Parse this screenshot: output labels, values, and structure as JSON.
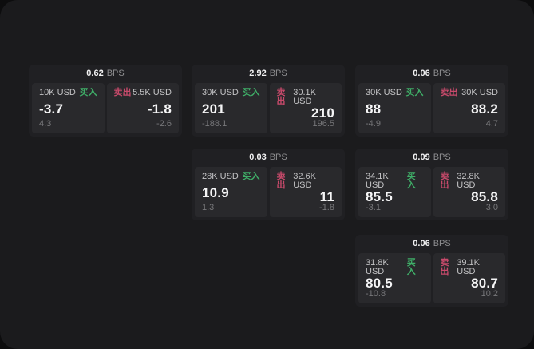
{
  "app": {
    "panel": "quote-board",
    "accent_green": "#3fae68",
    "accent_red": "#c84a6b",
    "bps_label": "BPS",
    "buy_label": "买入",
    "sell_label": "卖出"
  },
  "cards": [
    {
      "col": 0,
      "row": 0,
      "bps_value": "0.62",
      "left": {
        "amount": "10K USD",
        "price": "-3.7",
        "delta": "4.3"
      },
      "right": {
        "amount": "5.5K USD",
        "price": "-1.8",
        "delta": "-2.6"
      }
    },
    {
      "col": 1,
      "row": 0,
      "bps_value": "2.92",
      "left": {
        "amount": "30K USD",
        "price": "201",
        "delta": "-188.1"
      },
      "right": {
        "amount": "30.1K USD",
        "price": "210",
        "delta": "196.5"
      }
    },
    {
      "col": 2,
      "row": 0,
      "bps_value": "0.06",
      "left": {
        "amount": "30K USD",
        "price": "88",
        "delta": "-4.9"
      },
      "right": {
        "amount": "30K USD",
        "price": "88.2",
        "delta": "4.7"
      }
    },
    {
      "col": 1,
      "row": 1,
      "bps_value": "0.03",
      "left": {
        "amount": "28K USD",
        "price": "10.9",
        "delta": "1.3"
      },
      "right": {
        "amount": "32.6K USD",
        "price": "11",
        "delta": "-1.8"
      }
    },
    {
      "col": 2,
      "row": 1,
      "bps_value": "0.09",
      "left": {
        "amount": "34.1K USD",
        "price": "85.5",
        "delta": "-3.1"
      },
      "right": {
        "amount": "32.8K USD",
        "price": "85.8",
        "delta": "3.0"
      }
    },
    {
      "col": 2,
      "row": 2,
      "bps_value": "0.06",
      "left": {
        "amount": "31.8K USD",
        "price": "80.5",
        "delta": "-10.8"
      },
      "right": {
        "amount": "39.1K USD",
        "price": "80.7",
        "delta": "10.2"
      }
    }
  ]
}
